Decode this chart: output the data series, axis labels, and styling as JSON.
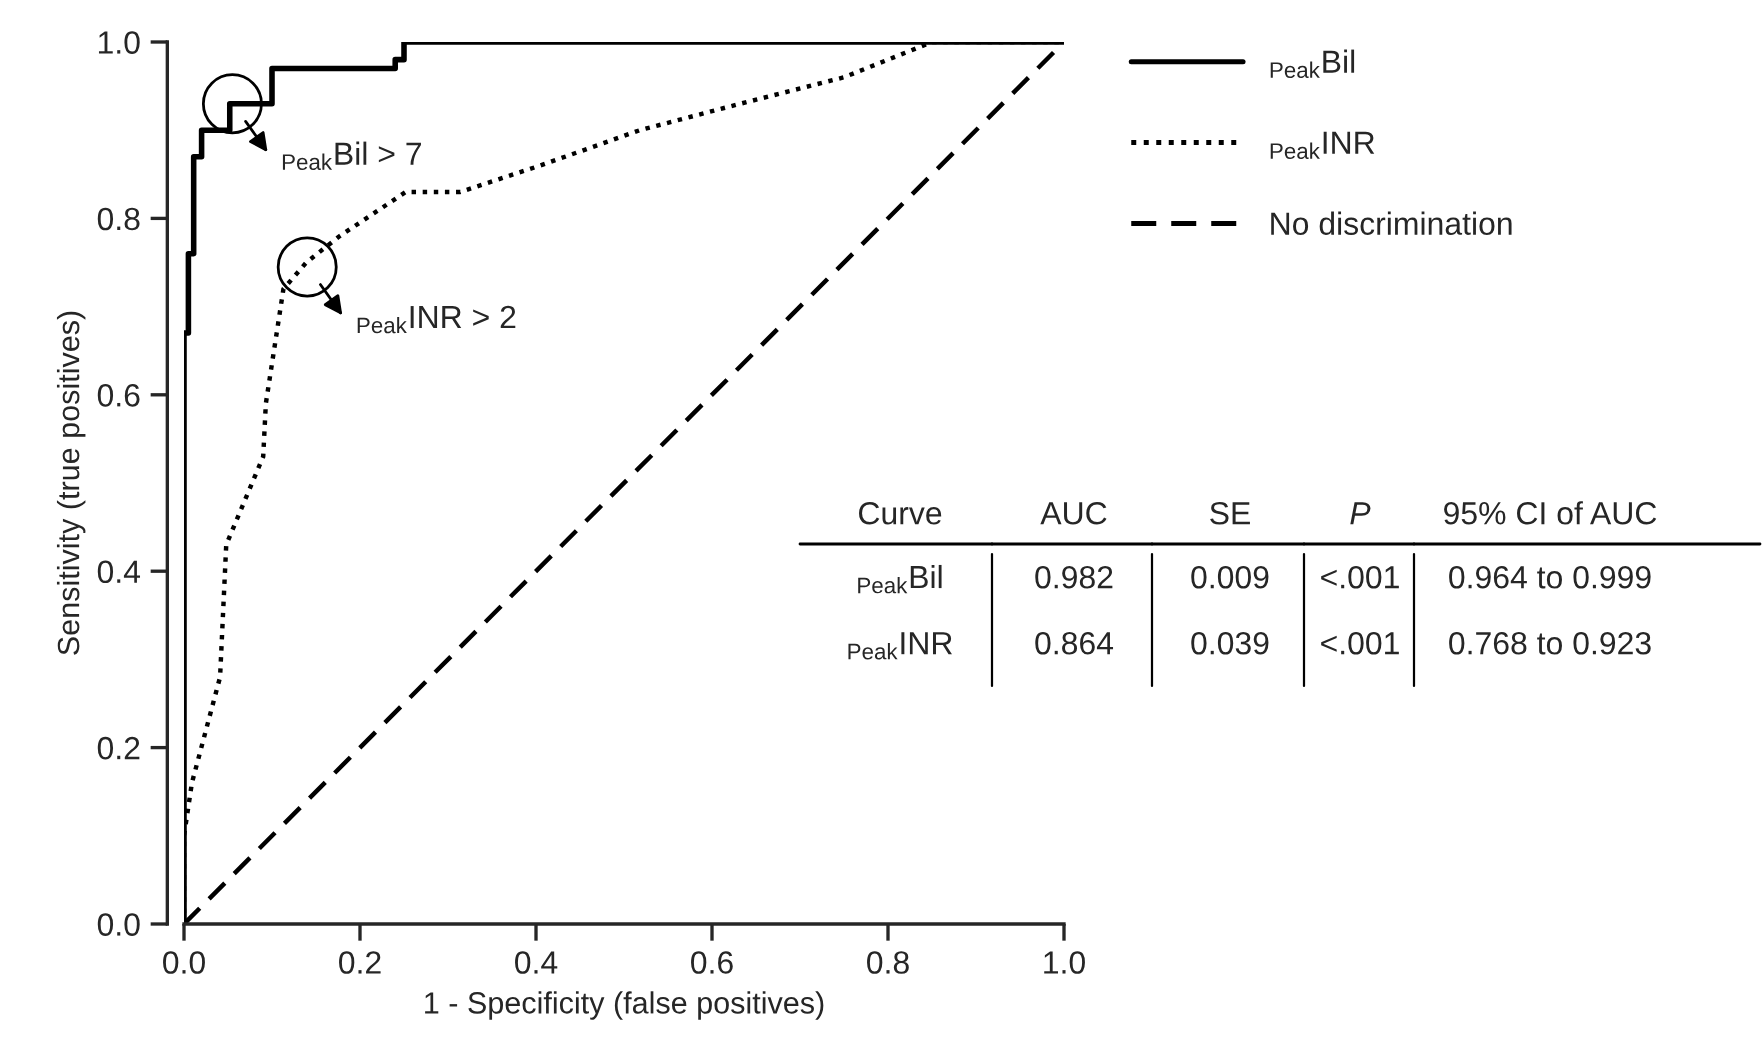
{
  "chart_data": {
    "type": "line",
    "xlabel": "1 - Specificity (false positives)",
    "ylabel": "Sensitivity (true positives)",
    "xlim": [
      0,
      1
    ],
    "ylim": [
      0,
      1
    ],
    "xticks": [
      {
        "value": 0,
        "label": "0.0"
      },
      0.2,
      0.4,
      0.6,
      0.8,
      {
        "value": 1,
        "label": "1.0"
      }
    ],
    "yticks": [
      {
        "value": 0,
        "label": "0.0"
      },
      0.2,
      0.4,
      0.6,
      0.8,
      {
        "value": 1,
        "label": "1.0"
      }
    ],
    "grid": false,
    "legend": "right",
    "marker": "none",
    "series": [
      {
        "name": "$_{Peak}$Bil",
        "color": "#000000",
        "line_style": "solid",
        "x": [
          0,
          0,
          0.005,
          0.005,
          0.011,
          0.011,
          0.02,
          0.02,
          0.052,
          0.052,
          0.1,
          0.1,
          0.24,
          0.24,
          0.25,
          0.25,
          1
        ],
        "values": [
          0,
          0.67,
          0.67,
          0.76,
          0.76,
          0.87,
          0.87,
          0.9,
          0.9,
          0.93,
          0.93,
          0.97,
          0.97,
          0.98,
          0.98,
          1,
          1
        ]
      },
      {
        "name": "$_{Peak}$INR",
        "color": "#000000",
        "line_style": "dotted",
        "x": [
          0,
          0,
          0.009,
          0.041,
          0.048,
          0.09,
          0.093,
          0.113,
          0.139,
          0.177,
          0.252,
          0.314,
          0.405,
          0.518,
          0.632,
          0.75,
          0.85,
          1
        ],
        "values": [
          0,
          0.1,
          0.16,
          0.28,
          0.43,
          0.53,
          0.59,
          0.72,
          0.75,
          0.78,
          0.83,
          0.83,
          0.86,
          0.9,
          0.93,
          0.96,
          1,
          1
        ]
      },
      {
        "name": "No discrimination",
        "color": "#000000",
        "line_style": "dashed",
        "x": [
          0,
          1
        ],
        "values": [
          0,
          1
        ]
      }
    ],
    "annotations": [
      {
        "text": "$_{Peak}$Bil > 7",
        "x": 0.055,
        "y": 0.93
      },
      {
        "text": "$_{Peak}$INR > 2",
        "x": 0.14,
        "y": 0.745
      },
      "Curve",
      "AUC",
      "SE",
      "P",
      "95% CI of AUC",
      "$_{Peak}$Bil",
      "0.982",
      "0.009",
      "<.001",
      "0.964 to 0.999",
      "$_{Peak}$INR",
      "0.864",
      "0.039",
      "<.001",
      "0.768 to 0.923"
    ]
  }
}
